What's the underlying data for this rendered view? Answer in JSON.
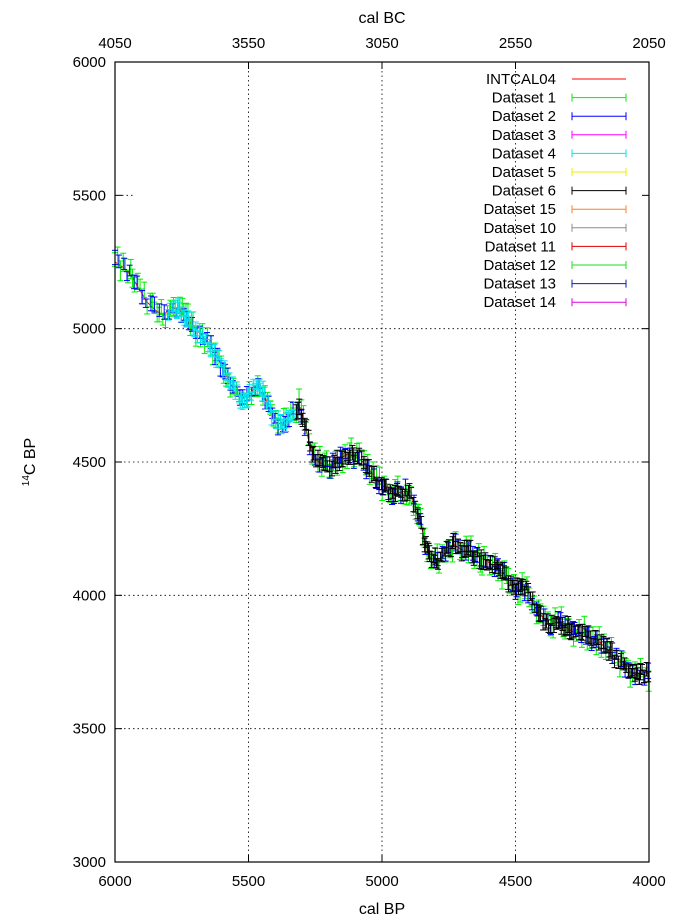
{
  "chart_data": {
    "type": "scatter",
    "title": "",
    "xlabel": "cal BP",
    "x2label": "cal BC",
    "ylabel_prefix": "14",
    "ylabel_main": "C BP",
    "xlim": [
      6000,
      4000
    ],
    "ylim": [
      3000,
      6000
    ],
    "x_ticks": [
      "6000",
      "5500",
      "5000",
      "4500",
      "4000"
    ],
    "x2_ticks": [
      "4050",
      "3550",
      "3050",
      "2550",
      "2050"
    ],
    "y_ticks": [
      "3000",
      "3500",
      "4000",
      "4500",
      "5000",
      "5500",
      "6000"
    ],
    "grid": true,
    "legend_position": "top-right",
    "curve_points": [
      [
        6000,
        5250
      ],
      [
        5970,
        5230
      ],
      [
        5940,
        5200
      ],
      [
        5910,
        5150
      ],
      [
        5880,
        5100
      ],
      [
        5850,
        5070
      ],
      [
        5820,
        5050
      ],
      [
        5790,
        5080
      ],
      [
        5760,
        5070
      ],
      [
        5730,
        5040
      ],
      [
        5700,
        5000
      ],
      [
        5670,
        4970
      ],
      [
        5640,
        4930
      ],
      [
        5610,
        4880
      ],
      [
        5580,
        4820
      ],
      [
        5550,
        4760
      ],
      [
        5520,
        4740
      ],
      [
        5490,
        4760
      ],
      [
        5460,
        4800
      ],
      [
        5430,
        4720
      ],
      [
        5400,
        4650
      ],
      [
        5370,
        4640
      ],
      [
        5340,
        4680
      ],
      [
        5310,
        4710
      ],
      [
        5290,
        4650
      ],
      [
        5270,
        4560
      ],
      [
        5250,
        4510
      ],
      [
        5220,
        4490
      ],
      [
        5190,
        4480
      ],
      [
        5160,
        4510
      ],
      [
        5130,
        4530
      ],
      [
        5100,
        4520
      ],
      [
        5070,
        4500
      ],
      [
        5040,
        4460
      ],
      [
        5010,
        4420
      ],
      [
        4980,
        4400
      ],
      [
        4950,
        4380
      ],
      [
        4920,
        4390
      ],
      [
        4890,
        4370
      ],
      [
        4860,
        4300
      ],
      [
        4840,
        4200
      ],
      [
        4820,
        4140
      ],
      [
        4790,
        4130
      ],
      [
        4760,
        4160
      ],
      [
        4730,
        4190
      ],
      [
        4700,
        4170
      ],
      [
        4670,
        4160
      ],
      [
        4640,
        4150
      ],
      [
        4610,
        4130
      ],
      [
        4580,
        4110
      ],
      [
        4550,
        4090
      ],
      [
        4520,
        4040
      ],
      [
        4490,
        4020
      ],
      [
        4460,
        4030
      ],
      [
        4430,
        3960
      ],
      [
        4400,
        3920
      ],
      [
        4370,
        3890
      ],
      [
        4340,
        3900
      ],
      [
        4310,
        3880
      ],
      [
        4280,
        3860
      ],
      [
        4250,
        3860
      ],
      [
        4220,
        3840
      ],
      [
        4190,
        3830
      ],
      [
        4160,
        3800
      ],
      [
        4130,
        3770
      ],
      [
        4100,
        3740
      ],
      [
        4070,
        3710
      ],
      [
        4040,
        3700
      ],
      [
        4010,
        3710
      ],
      [
        4000,
        3700
      ]
    ],
    "series": [
      {
        "name": "INTCAL04",
        "color": "#ff0000",
        "style": "line"
      },
      {
        "name": "Dataset 1",
        "color": "#00ee00",
        "style": "errorbar"
      },
      {
        "name": "Dataset 2",
        "color": "#0000ff",
        "style": "errorbar"
      },
      {
        "name": "Dataset 3",
        "color": "#ff00ff",
        "style": "errorbar"
      },
      {
        "name": "Dataset 4",
        "color": "#00e5ee",
        "style": "errorbar"
      },
      {
        "name": "Dataset 5",
        "color": "#eeee00",
        "style": "errorbar"
      },
      {
        "name": "Dataset 6",
        "color": "#000000",
        "style": "errorbar"
      },
      {
        "name": "Dataset 15",
        "color": "#ff7f27",
        "style": "errorbar"
      },
      {
        "name": "Dataset 10",
        "color": "#8c8c8c",
        "style": "errorbar"
      },
      {
        "name": "Dataset 11",
        "color": "#dd0000",
        "style": "errorbar"
      },
      {
        "name": "Dataset 12",
        "color": "#22dd22",
        "style": "errorbar"
      },
      {
        "name": "Dataset 13",
        "color": "#1a1ab0",
        "style": "errorbar"
      },
      {
        "name": "Dataset 14",
        "color": "#dd00dd",
        "style": "errorbar"
      }
    ],
    "data_segments": [
      {
        "series": "Dataset 1",
        "x_range": [
          6000,
          4000
        ],
        "spacing": 9,
        "jitter": 30,
        "err": 28
      },
      {
        "series": "Dataset 2",
        "x_range": [
          6000,
          4000
        ],
        "spacing": 14,
        "jitter": 22,
        "err": 22
      },
      {
        "series": "Dataset 4",
        "x_range": [
          5800,
          5320
        ],
        "spacing": 6,
        "jitter": 22,
        "err": 20
      },
      {
        "series": "Dataset 6",
        "x_range": [
          5320,
          4000
        ],
        "spacing": 7,
        "jitter": 18,
        "err": 22
      }
    ]
  }
}
